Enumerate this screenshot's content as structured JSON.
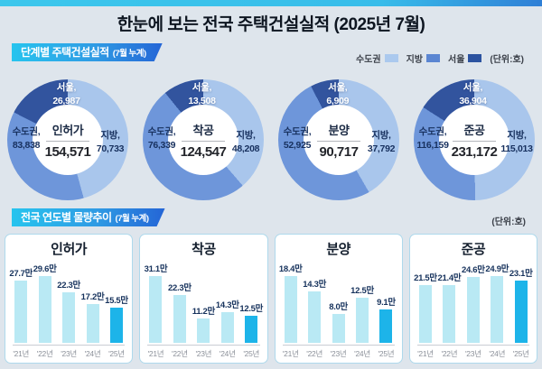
{
  "page": {
    "title": "한눈에 보는 전국 주택건설실적 (2025년 7월)"
  },
  "legend": {
    "items": [
      {
        "label": "수도권",
        "color": "#abc9ee"
      },
      {
        "label": "지방",
        "color": "#5b86d2"
      },
      {
        "label": "서울",
        "color": "#2c53a0"
      }
    ],
    "unit": "(단위:호)"
  },
  "stage_section": {
    "header": "단계별 주택건설실적",
    "header_sub": "(7월 누계)",
    "donut_colors": {
      "local": "#a9c6ec",
      "capital": "#6e96da",
      "seoul": "#32549e"
    },
    "donuts": [
      {
        "name": "인허가",
        "total_display": "154,571",
        "capital_label": "수도권,",
        "capital_value": "83,838",
        "local_label": "지방,",
        "local_value": "70,733",
        "seoul_label": "서울,",
        "seoul_value": "26,987",
        "values": {
          "capital": 83838,
          "local": 70733,
          "seoul": 26987,
          "total": 154571
        }
      },
      {
        "name": "착공",
        "total_display": "124,547",
        "capital_label": "수도권,",
        "capital_value": "76,339",
        "local_label": "지방,",
        "local_value": "48,208",
        "seoul_label": "서울,",
        "seoul_value": "13,508",
        "values": {
          "capital": 76339,
          "local": 48208,
          "seoul": 13508,
          "total": 124547
        }
      },
      {
        "name": "분양",
        "total_display": "90,717",
        "capital_label": "수도권,",
        "capital_value": "52,925",
        "local_label": "지방,",
        "local_value": "37,792",
        "seoul_label": "서울,",
        "seoul_value": "6,909",
        "values": {
          "capital": 52925,
          "local": 37792,
          "seoul": 6909,
          "total": 90717
        }
      },
      {
        "name": "준공",
        "total_display": "231,172",
        "capital_label": "수도권,",
        "capital_value": "116,159",
        "local_label": "지방,",
        "local_value": "115,013",
        "seoul_label": "서울,",
        "seoul_value": "36,904",
        "values": {
          "capital": 116159,
          "local": 115013,
          "seoul": 36904,
          "total": 231172
        }
      }
    ]
  },
  "trend_section": {
    "header": "전국 연도별 물량추이",
    "header_sub": "(7월 누계)",
    "unit": "(단위:호)",
    "bar_colors": {
      "default": "#b9e9f4",
      "current": "#1db4e9"
    },
    "panels": [
      {
        "title": "인허가",
        "categories": [
          "'21년",
          "'22년",
          "'23년",
          "'24년",
          "'25년"
        ],
        "values": [
          27.7,
          29.6,
          22.3,
          17.2,
          15.5
        ],
        "value_labels": [
          "27.7만",
          "29.6만",
          "22.3만",
          "17.2만",
          "15.5만"
        ]
      },
      {
        "title": "착공",
        "categories": [
          "'21년",
          "'22년",
          "'23년",
          "'24년",
          "'25년"
        ],
        "values": [
          31.1,
          22.3,
          11.2,
          14.3,
          12.5
        ],
        "value_labels": [
          "31.1만",
          "22.3만",
          "11.2만",
          "14.3만",
          "12.5만"
        ]
      },
      {
        "title": "분양",
        "categories": [
          "'21년",
          "'22년",
          "'23년",
          "'24년",
          "'25년"
        ],
        "values": [
          18.4,
          14.3,
          8.0,
          12.5,
          9.1
        ],
        "value_labels": [
          "18.4만",
          "14.3만",
          "8.0만",
          "12.5만",
          "9.1만"
        ]
      },
      {
        "title": "준공",
        "categories": [
          "'21년",
          "'22년",
          "'23년",
          "'24년",
          "'25년"
        ],
        "values": [
          21.5,
          21.4,
          24.6,
          24.9,
          23.1
        ],
        "value_labels": [
          "21.5만",
          "21.4만",
          "24.6만",
          "24.9만",
          "23.1만"
        ]
      }
    ]
  },
  "chart_data": [
    {
      "type": "pie",
      "title": "인허가",
      "unit": "호",
      "total": 154571,
      "slices": [
        {
          "label": "수도권",
          "value": 83838
        },
        {
          "label": "지방",
          "value": 70733
        },
        {
          "label": "서울",
          "value": 26987
        }
      ]
    },
    {
      "type": "pie",
      "title": "착공",
      "unit": "호",
      "total": 124547,
      "slices": [
        {
          "label": "수도권",
          "value": 76339
        },
        {
          "label": "지방",
          "value": 48208
        },
        {
          "label": "서울",
          "value": 13508
        }
      ]
    },
    {
      "type": "pie",
      "title": "분양",
      "unit": "호",
      "total": 90717,
      "slices": [
        {
          "label": "수도권",
          "value": 52925
        },
        {
          "label": "지방",
          "value": 37792
        },
        {
          "label": "서울",
          "value": 6909
        }
      ]
    },
    {
      "type": "pie",
      "title": "준공",
      "unit": "호",
      "total": 231172,
      "slices": [
        {
          "label": "수도권",
          "value": 116159
        },
        {
          "label": "지방",
          "value": 115013
        },
        {
          "label": "서울",
          "value": 36904
        }
      ]
    },
    {
      "type": "bar",
      "title": "인허가",
      "unit": "만 호",
      "categories": [
        "'21년",
        "'22년",
        "'23년",
        "'24년",
        "'25년"
      ],
      "values": [
        27.7,
        29.6,
        22.3,
        17.2,
        15.5
      ]
    },
    {
      "type": "bar",
      "title": "착공",
      "unit": "만 호",
      "categories": [
        "'21년",
        "'22년",
        "'23년",
        "'24년",
        "'25년"
      ],
      "values": [
        31.1,
        22.3,
        11.2,
        14.3,
        12.5
      ]
    },
    {
      "type": "bar",
      "title": "분양",
      "unit": "만 호",
      "categories": [
        "'21년",
        "'22년",
        "'23년",
        "'24년",
        "'25년"
      ],
      "values": [
        18.4,
        14.3,
        8.0,
        12.5,
        9.1
      ]
    },
    {
      "type": "bar",
      "title": "준공",
      "unit": "만 호",
      "categories": [
        "'21년",
        "'22년",
        "'23년",
        "'24년",
        "'25년"
      ],
      "values": [
        21.5,
        21.4,
        24.6,
        24.9,
        23.1
      ]
    }
  ]
}
